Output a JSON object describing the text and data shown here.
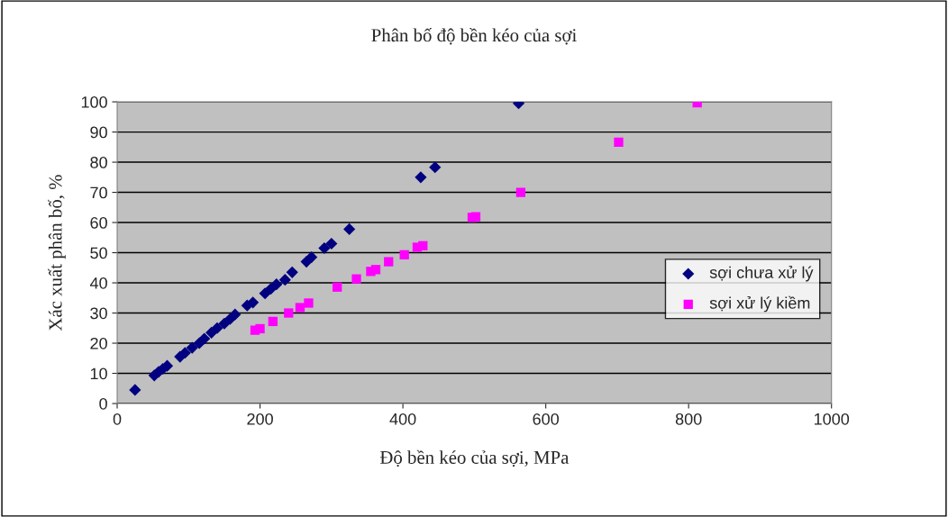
{
  "chart_data": {
    "type": "scatter",
    "title": "Phân bố độ bền kéo của sợi",
    "xlabel": "Độ bền kéo của sợi, MPa",
    "ylabel": "Xác xuất phân bố, %",
    "xlim": [
      0,
      1000
    ],
    "xticks": [
      0,
      200,
      400,
      600,
      800,
      1000
    ],
    "ylim": [
      0,
      100
    ],
    "yticks": [
      0,
      10,
      20,
      30,
      40,
      50,
      60,
      70,
      80,
      90,
      100
    ],
    "grid": "y",
    "legend": "right",
    "series": [
      {
        "name": "sợi chưa xử lý",
        "color": "#000080",
        "marker": "diamond",
        "x": [
          25,
          52,
          58,
          64,
          70,
          88,
          95,
          105,
          115,
          122,
          132,
          140,
          150,
          158,
          165,
          182,
          190,
          207,
          215,
          223,
          235,
          245,
          265,
          272,
          290,
          300,
          325,
          425,
          445,
          562
        ],
        "values": [
          4.5,
          9.3,
          10.5,
          11.5,
          12.5,
          15.5,
          16.8,
          18.5,
          20,
          21.5,
          23.5,
          25,
          26.5,
          28,
          29.5,
          32.5,
          33.5,
          36.5,
          38,
          39.5,
          41,
          43.5,
          47,
          48.5,
          51.5,
          53,
          57.8,
          75,
          78.3,
          99.5
        ]
      },
      {
        "name": "sợi xử lý kiềm",
        "color": "#ff00ff",
        "marker": "square",
        "x": [
          193,
          200,
          218,
          240,
          256,
          268,
          308,
          335,
          355,
          362,
          380,
          402,
          420,
          428,
          497,
          502,
          565,
          702,
          812
        ],
        "values": [
          24.3,
          24.8,
          27.2,
          30,
          31.8,
          33.3,
          38.6,
          41.3,
          43.8,
          44.4,
          47,
          49.3,
          51.8,
          52.3,
          61.7,
          61.9,
          70,
          86.6,
          99.7
        ]
      }
    ]
  }
}
